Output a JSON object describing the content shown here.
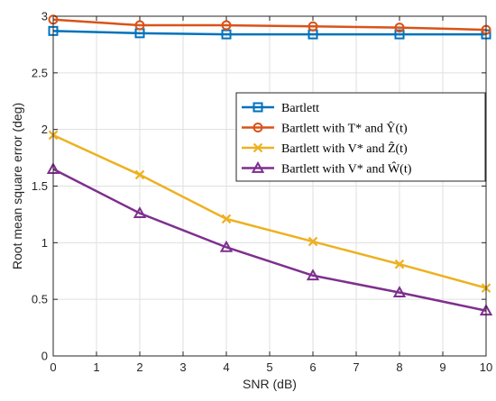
{
  "chart_data": {
    "type": "line",
    "title": "",
    "xlabel": "SNR (dB)",
    "ylabel": "Root mean square error (deg)",
    "x": [
      0,
      2,
      4,
      6,
      8,
      10
    ],
    "xlim": [
      0,
      10
    ],
    "ylim": [
      0,
      3
    ],
    "xticks": [
      0,
      1,
      2,
      3,
      4,
      5,
      6,
      7,
      8,
      9,
      10
    ],
    "xtick_labels": [
      "0",
      "1",
      "2",
      "3",
      "4",
      "5",
      "6",
      "7",
      "8",
      "9",
      "10"
    ],
    "yticks": [
      0,
      0.5,
      1,
      1.5,
      2,
      2.5,
      3
    ],
    "ytick_labels": [
      "0",
      "0.5",
      "1",
      "1.5",
      "2",
      "2.5",
      "3"
    ],
    "grid": true,
    "legend_position": "right",
    "series": [
      {
        "name": "Bartlett",
        "values": [
          2.87,
          2.85,
          2.84,
          2.84,
          2.84,
          2.84
        ],
        "color": "#0072BD",
        "marker": "square"
      },
      {
        "name": "Bartlett with T* and Ŷ(t)",
        "values": [
          2.97,
          2.92,
          2.92,
          2.91,
          2.9,
          2.88
        ],
        "color": "#D95319",
        "marker": "circle"
      },
      {
        "name": "Bartlett with V* and Ẑ(t)",
        "values": [
          1.95,
          1.6,
          1.21,
          1.01,
          0.81,
          0.6
        ],
        "color": "#EDB120",
        "marker": "x"
      },
      {
        "name": "Bartlett with V* and Ŵ(t)",
        "values": [
          1.65,
          1.26,
          0.96,
          0.71,
          0.56,
          0.4
        ],
        "color": "#7E2F8E",
        "marker": "triangle"
      }
    ]
  }
}
